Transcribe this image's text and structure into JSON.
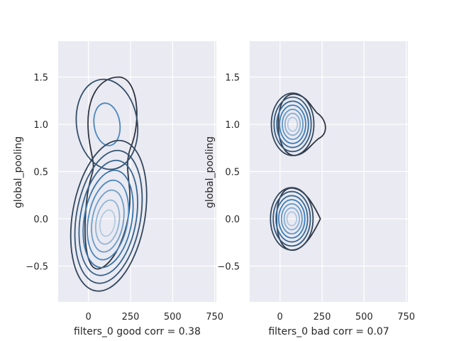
{
  "chart_data": [
    {
      "type": "contour",
      "xlabel": "filters_0 good corr = 0.38",
      "ylabel": "global_pooling",
      "xlim": [
        -180,
        760
      ],
      "ylim": [
        -0.88,
        1.88
      ],
      "xticks": [
        0,
        250,
        500,
        750
      ],
      "yticks": [
        -0.5,
        0.0,
        0.5,
        1.0,
        1.5
      ],
      "xtick_labels": [
        "0",
        "250",
        "500",
        "750"
      ],
      "ytick_labels": [
        "−0.5",
        "0.0",
        "0.5",
        "1.0",
        "1.5"
      ],
      "grid": true,
      "kde_modes": [
        {
          "center_x": 100,
          "center_y": 0.0,
          "contour_levels": 8
        },
        {
          "center_x": 110,
          "center_y": 1.0,
          "contour_levels": 2
        }
      ]
    },
    {
      "type": "contour",
      "xlabel": "filters_0 bad corr = 0.07",
      "ylabel": "global_pooling",
      "xlim": [
        -180,
        760
      ],
      "ylim": [
        -0.88,
        1.88
      ],
      "xticks": [
        0,
        250,
        500,
        750
      ],
      "yticks": [
        -0.5,
        0.0,
        0.5,
        1.0,
        1.5
      ],
      "xtick_labels": [
        "0",
        "250",
        "500",
        "750"
      ],
      "ytick_labels": [
        "−0.5",
        "0.0",
        "0.5",
        "1.0",
        "1.5"
      ],
      "grid": true,
      "kde_modes": [
        {
          "center_x": 75,
          "center_y": 1.0,
          "contour_levels": 8
        },
        {
          "center_x": 70,
          "center_y": 0.0,
          "contour_levels": 8
        }
      ]
    }
  ],
  "style": {
    "panel_bg": "#eaeaf2",
    "grid_color": "#ffffff",
    "outer_contour": "#2f3540",
    "inner_contour": "#d6e0ee",
    "mid_contour": "#3a7cb8"
  }
}
